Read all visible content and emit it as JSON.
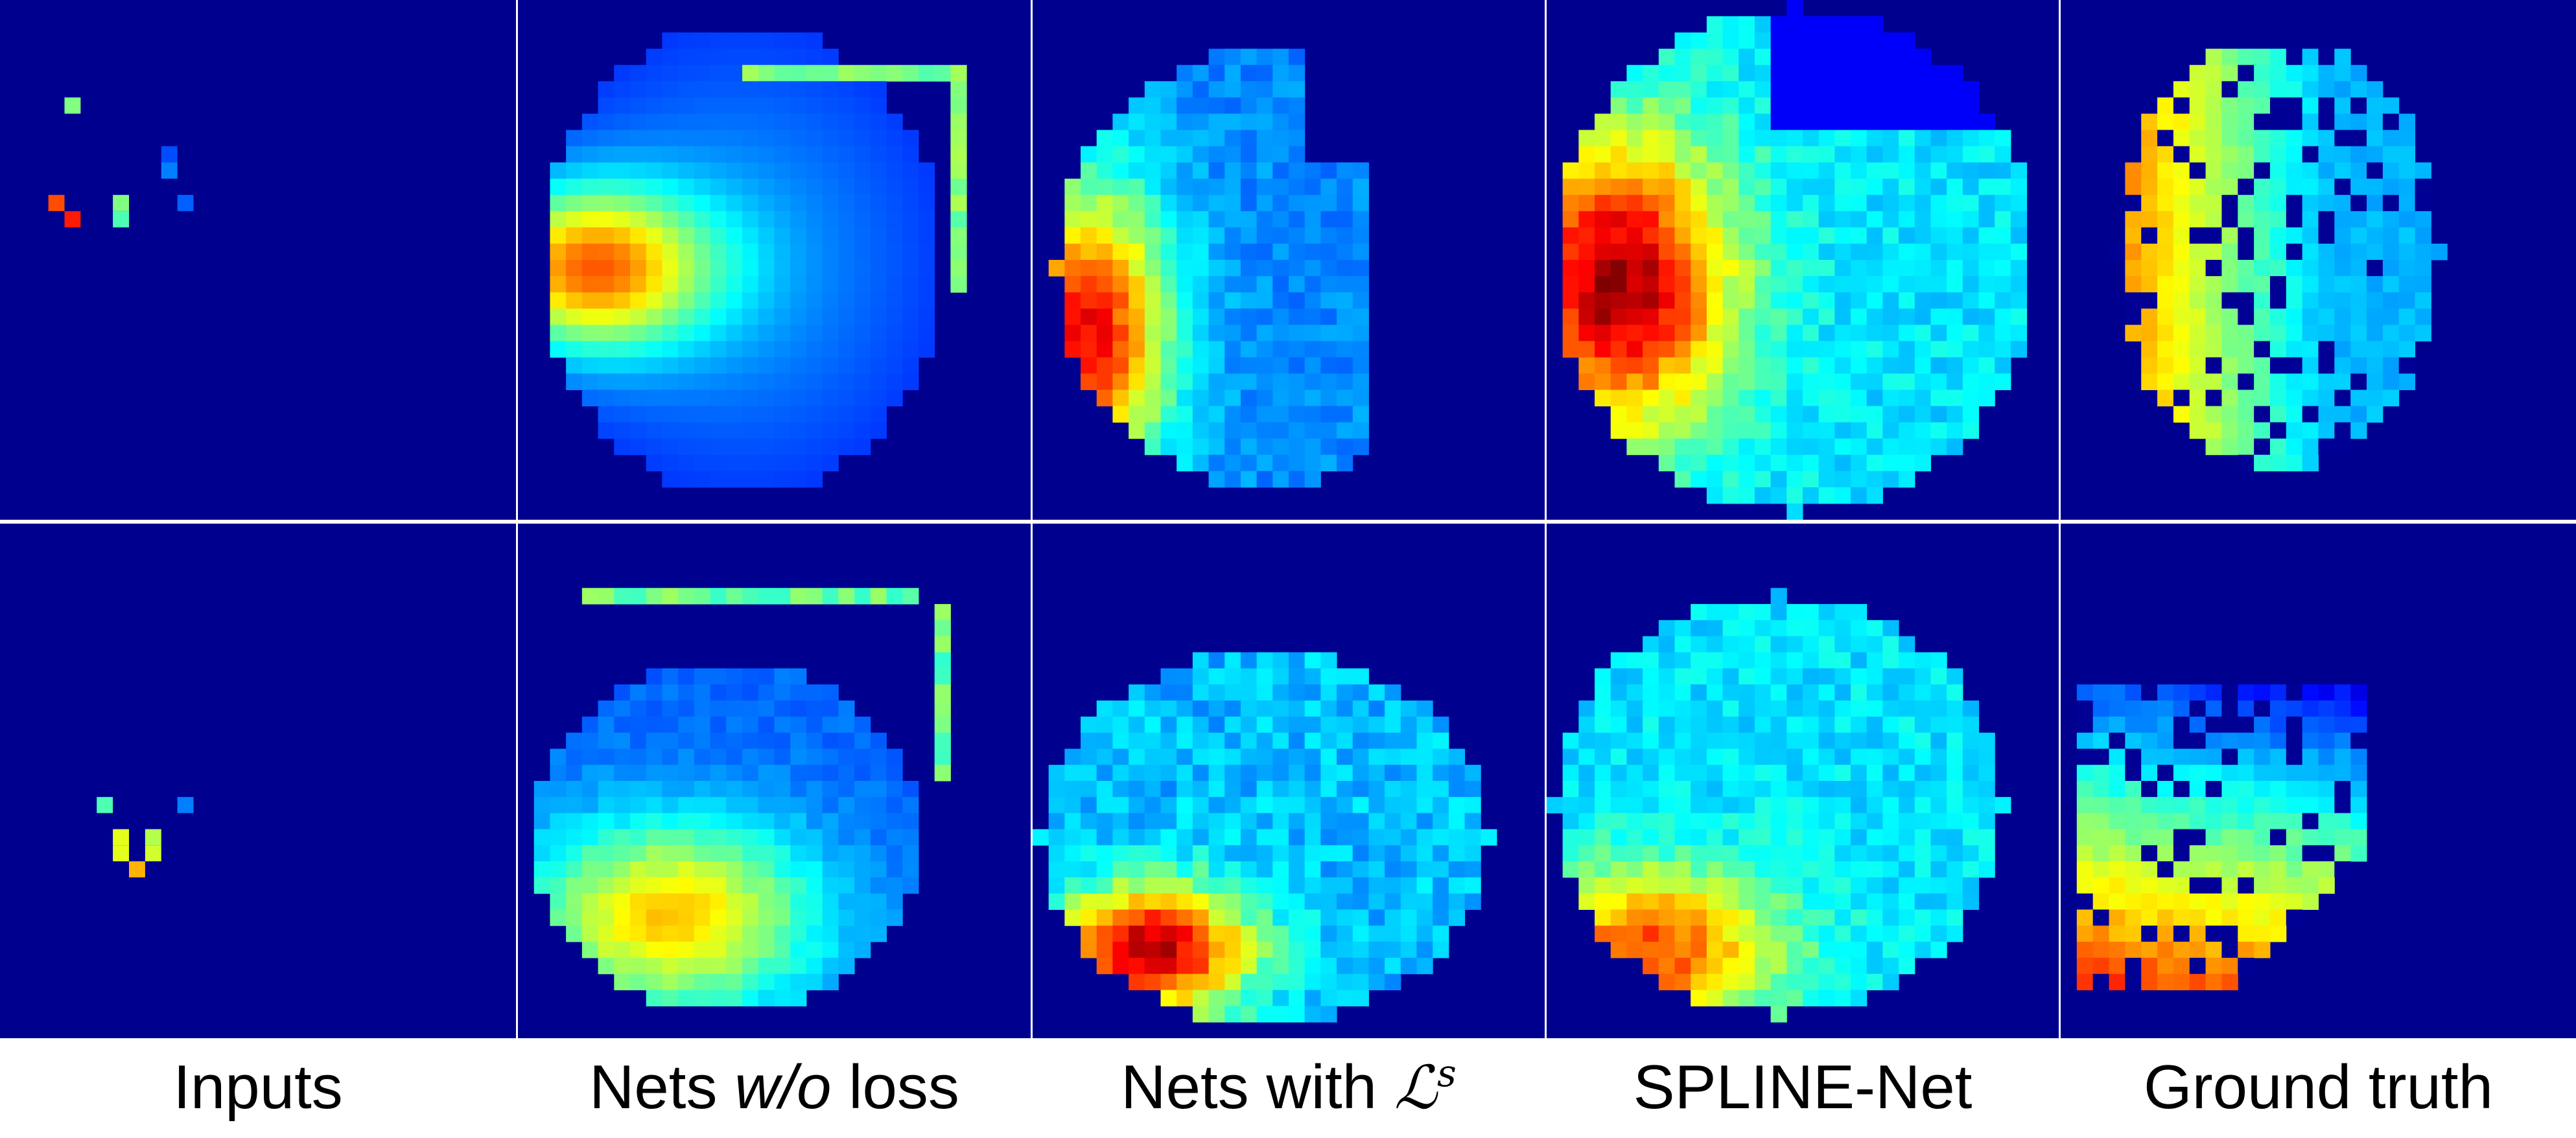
{
  "background_color": "#ffffff",
  "panel_background": "#00008f",
  "colormap": "jet",
  "columns": [
    {
      "id": "inputs"
    },
    {
      "id": "nets-wo-loss"
    },
    {
      "id": "nets-with-ls"
    },
    {
      "id": "spline-net"
    },
    {
      "id": "ground-truth"
    }
  ],
  "captions": {
    "inputs": "Inputs",
    "nets_wo_loss_prefix": "Nets ",
    "nets_wo_loss_italic": "w/o",
    "nets_wo_loss_suffix": " loss",
    "nets_with_prefix": "Nets with ",
    "nets_with_symbol": "ℒ",
    "nets_with_superscript": "s",
    "spline_net": "SPLINE-Net",
    "ground_truth": "Ground truth"
  }
}
